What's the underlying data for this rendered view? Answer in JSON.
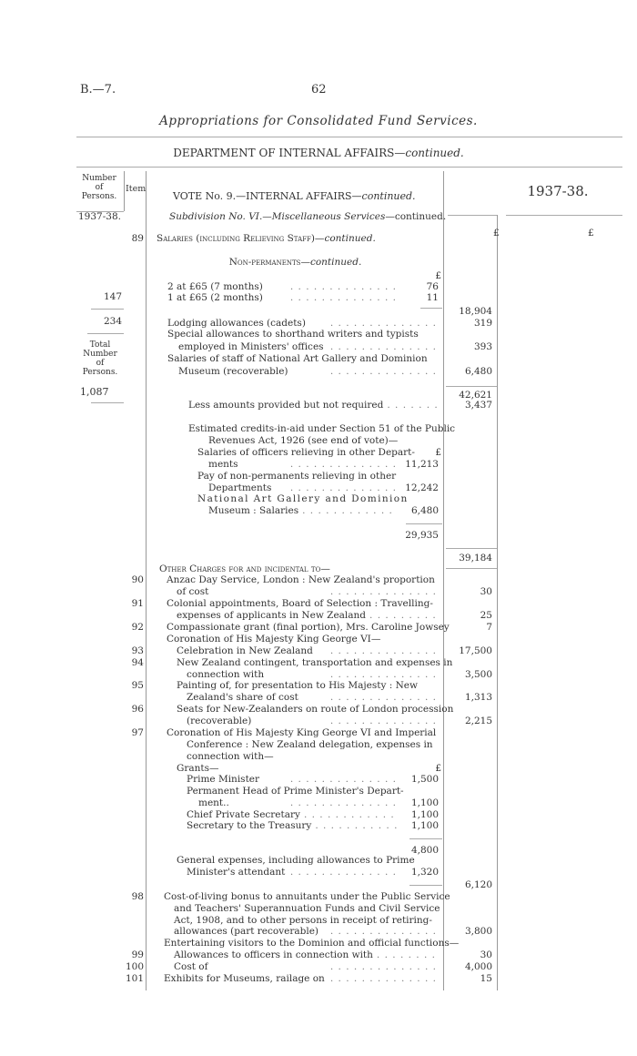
{
  "header": {
    "page_ref": "B.—7.",
    "page_number": "62",
    "title": "Appropriations for Consolidated Fund Services.",
    "department": "DEPARTMENT OF INTERNAL AFFAIRS",
    "department_cont": "—continued."
  },
  "table_head": {
    "persons": [
      "Number",
      "of",
      "Persons."
    ],
    "item": "Item",
    "vote": "VOTE No. 9.—INTERNAL AFFAIRS",
    "vote_cont": "—continued.",
    "year": "1937-38.",
    "currency_col1": "£",
    "currency_col2": "£"
  },
  "persons_col": {
    "year": "1937-38.",
    "entries": [
      "147",
      "234"
    ],
    "total_label": [
      "Total",
      "Number",
      "of",
      "Persons."
    ],
    "total": "1,087"
  },
  "subdivision": {
    "title": "Subdivision No. VI.—Miscellaneous Services",
    "cont": "—continued."
  },
  "lines": [
    {
      "item": "89",
      "text": "Salaries (including Relieving Staff)—",
      "italic_tail": "continued.",
      "sc": true
    },
    {
      "text": "Non-permanents—",
      "italic_tail": "continued.",
      "sc": true,
      "center": true
    },
    {
      "text": "",
      "inner": "£"
    },
    {
      "text": "2 at £65 (7 months)",
      "inner": "76"
    },
    {
      "text": "1 at £65 (2 months)",
      "inner": "11"
    },
    {
      "text": "",
      "amount": "18,904"
    },
    {
      "text": "Lodging allowances (cadets)",
      "amount": "319"
    },
    {
      "text": "Special allowances to shorthand writers and typists"
    },
    {
      "text": "employed in Ministers' offices",
      "amount": "393"
    },
    {
      "text": "Salaries of staff of National Art Gallery and Dominion"
    },
    {
      "text": "Museum (recoverable)",
      "amount": "6,480"
    },
    {
      "text": "",
      "amount": "42,621"
    },
    {
      "text": "Less amounts provided but not required",
      "amount": "3,437"
    },
    {
      "text": "Estimated credits-in-aid under Section 51 of the Public"
    },
    {
      "text": "Revenues Act, 1926 (see end of vote)—"
    },
    {
      "text": "Salaries of officers relieving in other Depart-",
      "inner": "£"
    },
    {
      "text": "ments",
      "inner": "11,213"
    },
    {
      "text": "Pay of non-permanents relieving in other"
    },
    {
      "text": "Departments",
      "inner": "12,242"
    },
    {
      "text": "National Art Gallery and Dominion"
    },
    {
      "text": "Museum : Salaries",
      "inner": "6,480"
    },
    {
      "text": "",
      "inner": "29,935"
    },
    {
      "text": "",
      "amount": "39,184"
    },
    {
      "text": "Other Charges for and incidental to—",
      "sc": true
    },
    {
      "item": "90",
      "text": "Anzac Day Service, London : New Zealand's proportion"
    },
    {
      "text": "of cost",
      "amount": "30"
    },
    {
      "item": "91",
      "text": "Colonial appointments, Board of Selection : Travelling-"
    },
    {
      "text": "expenses of applicants in New Zealand",
      "amount": "25"
    },
    {
      "item": "92",
      "text": "Compassionate grant (final portion), Mrs. Caroline Jowsey",
      "amount": "7",
      "nodots": true
    },
    {
      "text": "Coronation of His Majesty King George VI—"
    },
    {
      "item": "93",
      "text": "Celebration in New Zealand",
      "amount": "17,500"
    },
    {
      "item": "94",
      "text": "New Zealand contingent, transportation and expenses in"
    },
    {
      "text": "connection with",
      "amount": "3,500"
    },
    {
      "item": "95",
      "text": "Painting of, for presentation to His Majesty : New"
    },
    {
      "text": "Zealand's share of cost",
      "amount": "1,313"
    },
    {
      "item": "96",
      "text": "Seats for New-Zealanders on route of London procession"
    },
    {
      "text": "(recoverable)",
      "amount": "2,215"
    },
    {
      "item": "97",
      "text": "Coronation of His Majesty King George VI and Imperial"
    },
    {
      "text": "Conference : New Zealand delegation, expenses in"
    },
    {
      "text": "connection with—"
    },
    {
      "text": "Grants—",
      "inner": "£",
      "nodots": true
    },
    {
      "text": "Prime Minister",
      "inner": "1,500"
    },
    {
      "text": "Permanent Head of Prime Minister's Depart-"
    },
    {
      "text": "ment..",
      "inner": "1,100"
    },
    {
      "text": "Chief Private Secretary",
      "inner": "1,100"
    },
    {
      "text": "Secretary to the Treasury",
      "inner": "1,100"
    },
    {
      "text": "",
      "inner": "4,800"
    },
    {
      "text": "General expenses, including allowances to Prime"
    },
    {
      "text": "Minister's attendant",
      "inner": "1,320"
    },
    {
      "text": "",
      "amount": "6,120"
    },
    {
      "item": "98",
      "text": "Cost-of-living bonus to annuitants under the Public Service"
    },
    {
      "text": "and Teachers' Superannuation Funds and Civil Service"
    },
    {
      "text": "Act, 1908, and to other persons in receipt of retiring-"
    },
    {
      "text": "allowances (part recoverable)",
      "amount": "3,800"
    },
    {
      "text": "Entertaining visitors to the Dominion and official functions—"
    },
    {
      "item": "99",
      "text": "Allowances to officers in connection with",
      "amount": "30"
    },
    {
      "item": "100",
      "text": "Cost of",
      "amount": "4,000"
    },
    {
      "item": "101",
      "text": "Exhibits for Museums, railage on",
      "amount": "15"
    }
  ]
}
